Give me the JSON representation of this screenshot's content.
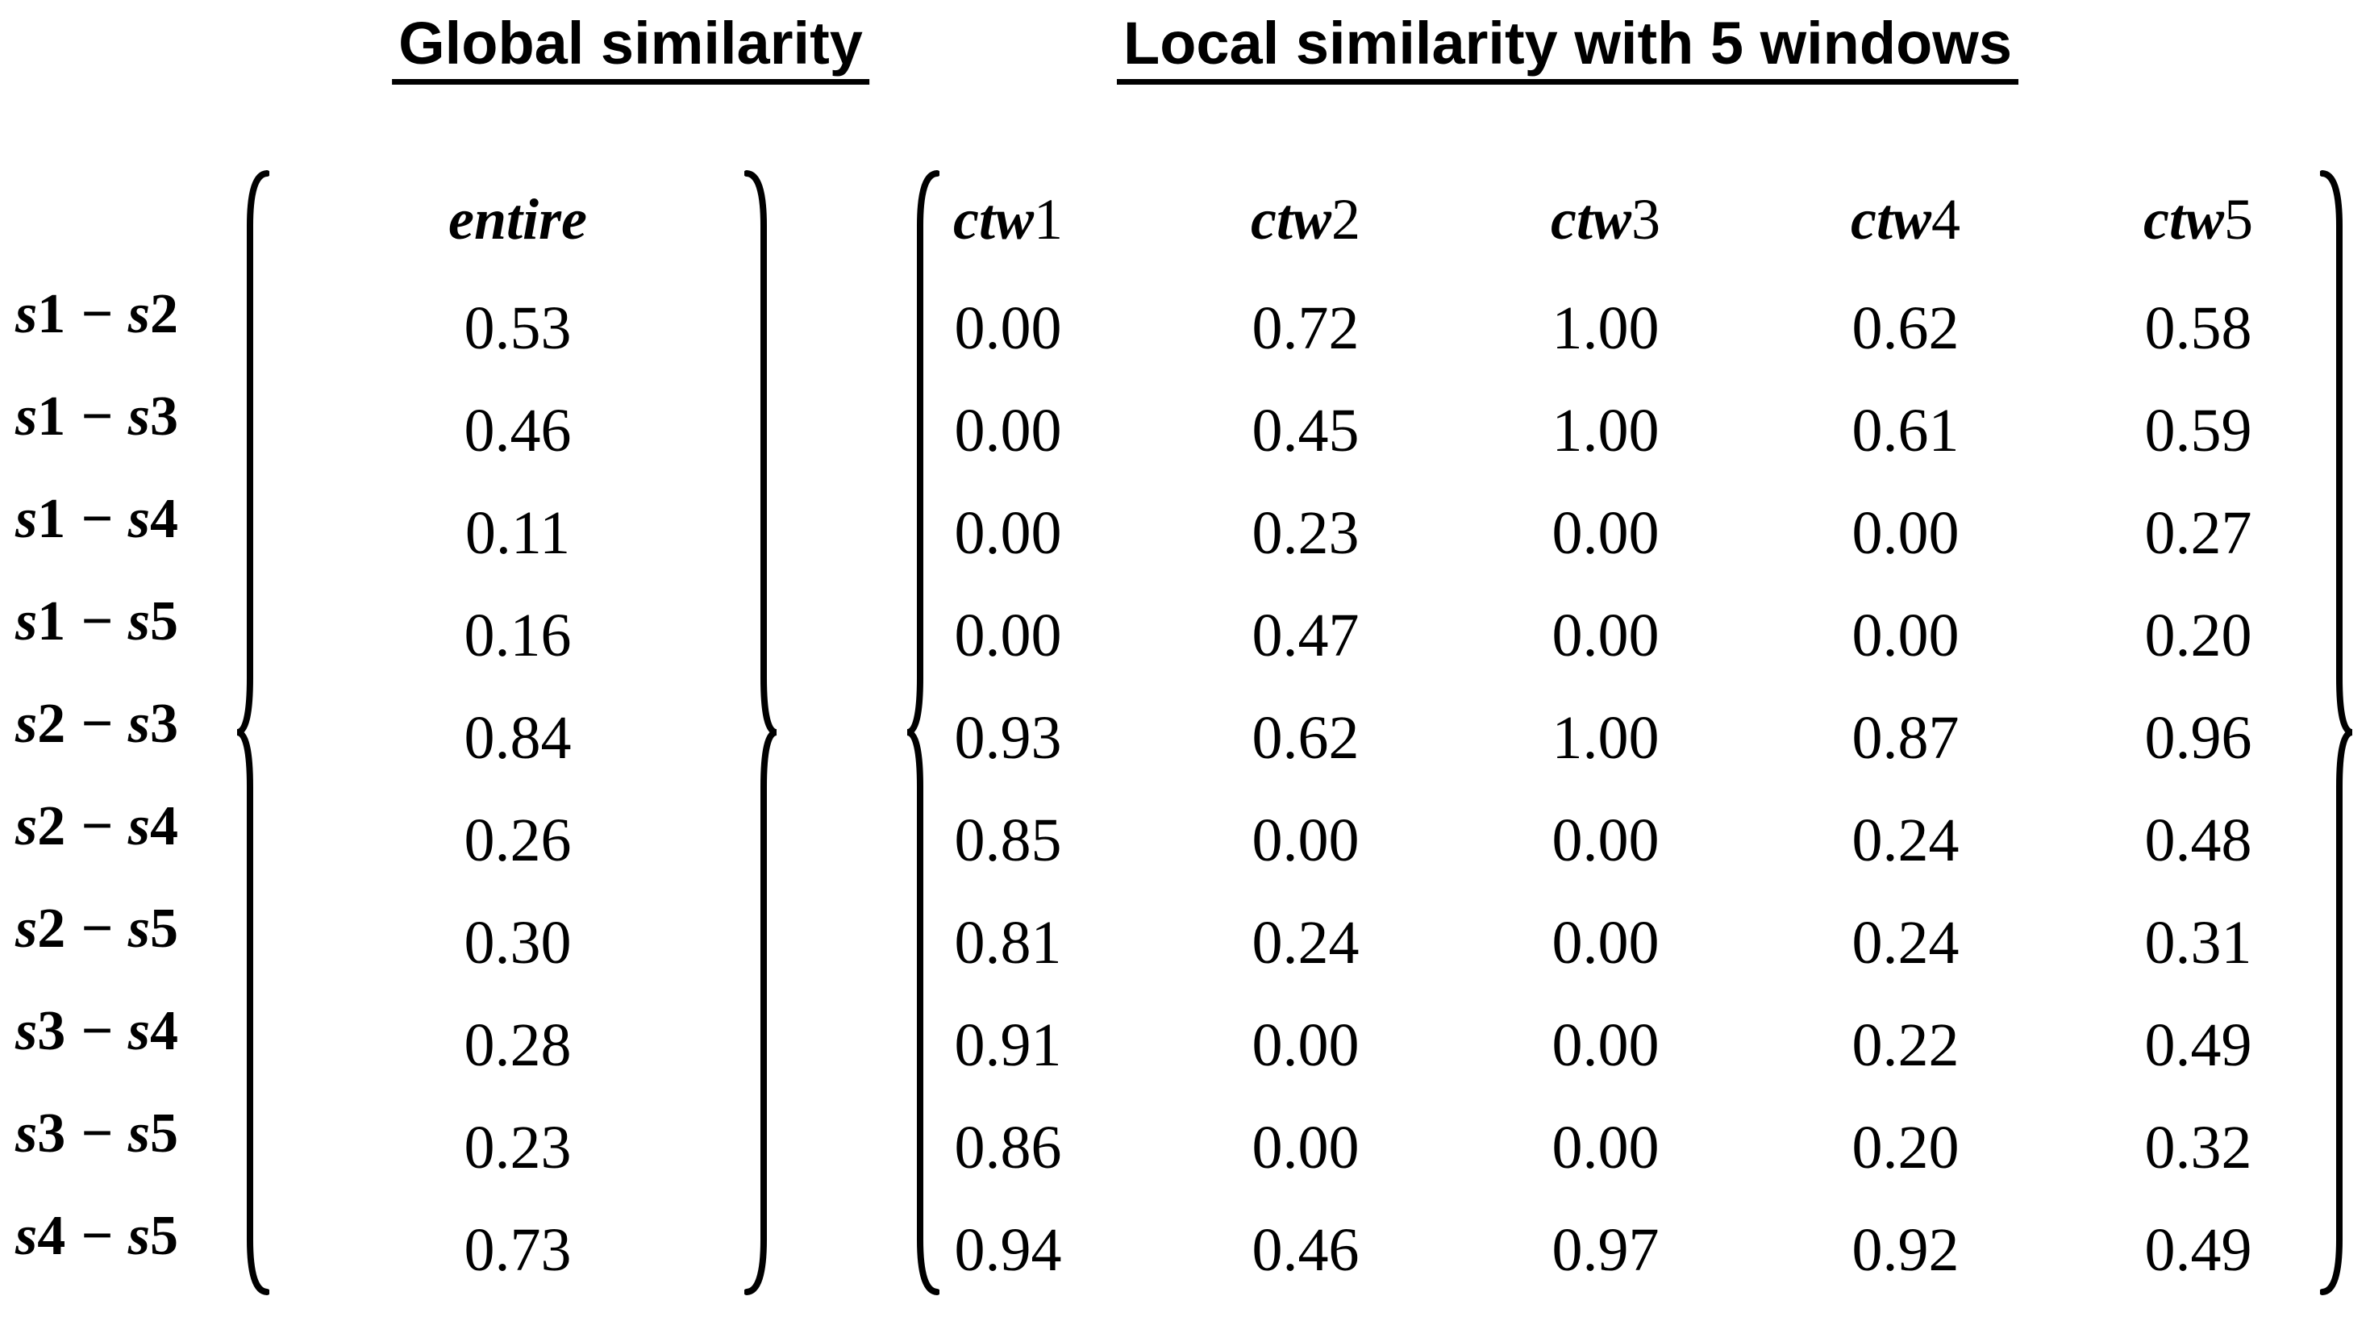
{
  "titles": {
    "global": "Global similarity",
    "local": "Local similarity with 5 windows"
  },
  "matrix_headers": {
    "entire": "entire",
    "ctw": [
      "ctw1",
      "ctw2",
      "ctw3",
      "ctw4",
      "ctw5"
    ]
  },
  "rows": [
    {
      "label": "s1 − s2",
      "entire": "0.53",
      "ctw": [
        "0.00",
        "0.72",
        "1.00",
        "0.62",
        "0.58"
      ]
    },
    {
      "label": "s1 − s3",
      "entire": "0.46",
      "ctw": [
        "0.00",
        "0.45",
        "1.00",
        "0.61",
        "0.59"
      ]
    },
    {
      "label": "s1 − s4",
      "entire": "0.11",
      "ctw": [
        "0.00",
        "0.23",
        "0.00",
        "0.00",
        "0.27"
      ]
    },
    {
      "label": "s1 − s5",
      "entire": "0.16",
      "ctw": [
        "0.00",
        "0.47",
        "0.00",
        "0.00",
        "0.20"
      ]
    },
    {
      "label": "s2 − s3",
      "entire": "0.84",
      "ctw": [
        "0.93",
        "0.62",
        "1.00",
        "0.87",
        "0.96"
      ]
    },
    {
      "label": "s2 − s4",
      "entire": "0.26",
      "ctw": [
        "0.85",
        "0.00",
        "0.00",
        "0.24",
        "0.48"
      ]
    },
    {
      "label": "s2 − s5",
      "entire": "0.30",
      "ctw": [
        "0.81",
        "0.24",
        "0.00",
        "0.24",
        "0.31"
      ]
    },
    {
      "label": "s3 − s4",
      "entire": "0.28",
      "ctw": [
        "0.91",
        "0.00",
        "0.00",
        "0.22",
        "0.49"
      ]
    },
    {
      "label": "s3 − s5",
      "entire": "0.23",
      "ctw": [
        "0.86",
        "0.00",
        "0.00",
        "0.20",
        "0.32"
      ]
    },
    {
      "label": "s4 − s5",
      "entire": "0.73",
      "ctw": [
        "0.94",
        "0.46",
        "0.97",
        "0.92",
        "0.49"
      ]
    }
  ],
  "colors": {
    "text": "#000000",
    "background": "#ffffff"
  },
  "chart_data": {
    "type": "table",
    "title_left": "Global similarity",
    "title_right": "Local similarity with 5 windows",
    "row_pairs": [
      "s1-s2",
      "s1-s3",
      "s1-s4",
      "s1-s5",
      "s2-s3",
      "s2-s4",
      "s2-s5",
      "s3-s4",
      "s3-s5",
      "s4-s5"
    ],
    "global_entire": [
      0.53,
      0.46,
      0.11,
      0.16,
      0.84,
      0.26,
      0.3,
      0.28,
      0.23,
      0.73
    ],
    "local_columns": [
      "ctw1",
      "ctw2",
      "ctw3",
      "ctw4",
      "ctw5"
    ],
    "local_values": [
      [
        0.0,
        0.72,
        1.0,
        0.62,
        0.58
      ],
      [
        0.0,
        0.45,
        1.0,
        0.61,
        0.59
      ],
      [
        0.0,
        0.23,
        0.0,
        0.0,
        0.27
      ],
      [
        0.0,
        0.47,
        0.0,
        0.0,
        0.2
      ],
      [
        0.93,
        0.62,
        1.0,
        0.87,
        0.96
      ],
      [
        0.85,
        0.0,
        0.0,
        0.24,
        0.48
      ],
      [
        0.81,
        0.24,
        0.0,
        0.24,
        0.31
      ],
      [
        0.91,
        0.0,
        0.0,
        0.22,
        0.49
      ],
      [
        0.86,
        0.0,
        0.0,
        0.2,
        0.32
      ],
      [
        0.94,
        0.46,
        0.97,
        0.92,
        0.49
      ]
    ]
  }
}
